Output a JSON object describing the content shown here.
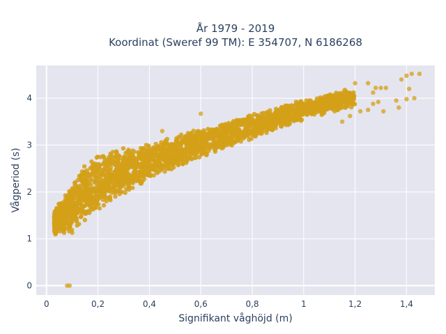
{
  "chart_data": {
    "type": "scatter",
    "title_lines": [
      "År 1979 - 2019",
      "Koordinat (Sweref 99 TM): E 354707, N 6186268"
    ],
    "xlabel": "Signifikant våghöjd (m)",
    "ylabel": "Vågperiod (s)",
    "xlim": [
      -0.04,
      1.51
    ],
    "ylim": [
      -0.2,
      4.7
    ],
    "x_ticks": [
      0,
      0.2,
      0.4,
      0.6,
      0.8,
      1,
      1.2,
      1.4
    ],
    "x_tick_labels": [
      "0",
      "0,2",
      "0,4",
      "0,6",
      "0,8",
      "1",
      "1,2",
      "1,4"
    ],
    "y_ticks": [
      0,
      1,
      2,
      3,
      4
    ],
    "y_tick_labels": [
      "0",
      "1",
      "2",
      "3",
      "4"
    ],
    "grid": true,
    "colors": {
      "marker": "#d4a017",
      "plot_bg": "#e5e5f0",
      "grid": "#ffffff",
      "text": "#2a3f5f"
    },
    "series": [
      {
        "trend_hs": [
          0.03,
          0.06,
          0.1,
          0.15,
          0.2,
          0.3,
          0.4,
          0.5,
          0.6,
          0.7,
          0.8,
          0.9,
          1.0,
          1.1,
          1.2
        ],
        "trend_tp": [
          1.35,
          1.45,
          1.65,
          2.0,
          2.2,
          2.45,
          2.65,
          2.85,
          3.05,
          3.22,
          3.4,
          3.58,
          3.75,
          3.9,
          4.02
        ],
        "spread_tp": [
          0.25,
          0.35,
          0.5,
          0.55,
          0.55,
          0.45,
          0.38,
          0.32,
          0.3,
          0.27,
          0.25,
          0.22,
          0.2,
          0.2,
          0.2
        ],
        "outliers": [
          {
            "x": 0.08,
            "y": 0.0
          },
          {
            "x": 0.09,
            "y": 0.0
          },
          {
            "x": 1.42,
            "y": 4.52
          },
          {
            "x": 1.45,
            "y": 4.52
          },
          {
            "x": 1.4,
            "y": 4.48
          },
          {
            "x": 1.38,
            "y": 4.4
          },
          {
            "x": 1.41,
            "y": 4.2
          },
          {
            "x": 1.43,
            "y": 4.0
          },
          {
            "x": 1.36,
            "y": 3.95
          },
          {
            "x": 1.37,
            "y": 3.8
          },
          {
            "x": 1.4,
            "y": 3.98
          },
          {
            "x": 1.3,
            "y": 4.22
          },
          {
            "x": 1.32,
            "y": 4.22
          },
          {
            "x": 1.28,
            "y": 4.22
          },
          {
            "x": 1.29,
            "y": 3.92
          },
          {
            "x": 1.27,
            "y": 3.88
          },
          {
            "x": 1.25,
            "y": 3.75
          },
          {
            "x": 1.31,
            "y": 3.72
          },
          {
            "x": 1.22,
            "y": 3.72
          },
          {
            "x": 1.18,
            "y": 3.62
          },
          {
            "x": 1.15,
            "y": 3.5
          },
          {
            "x": 1.12,
            "y": 3.72
          },
          {
            "x": 1.25,
            "y": 4.32
          },
          {
            "x": 1.2,
            "y": 4.32
          },
          {
            "x": 1.27,
            "y": 4.12
          },
          {
            "x": 0.6,
            "y": 3.67
          },
          {
            "x": 0.45,
            "y": 3.3
          },
          {
            "x": 0.09,
            "y": 1.75
          },
          {
            "x": 0.1,
            "y": 1.55
          }
        ]
      }
    ]
  }
}
